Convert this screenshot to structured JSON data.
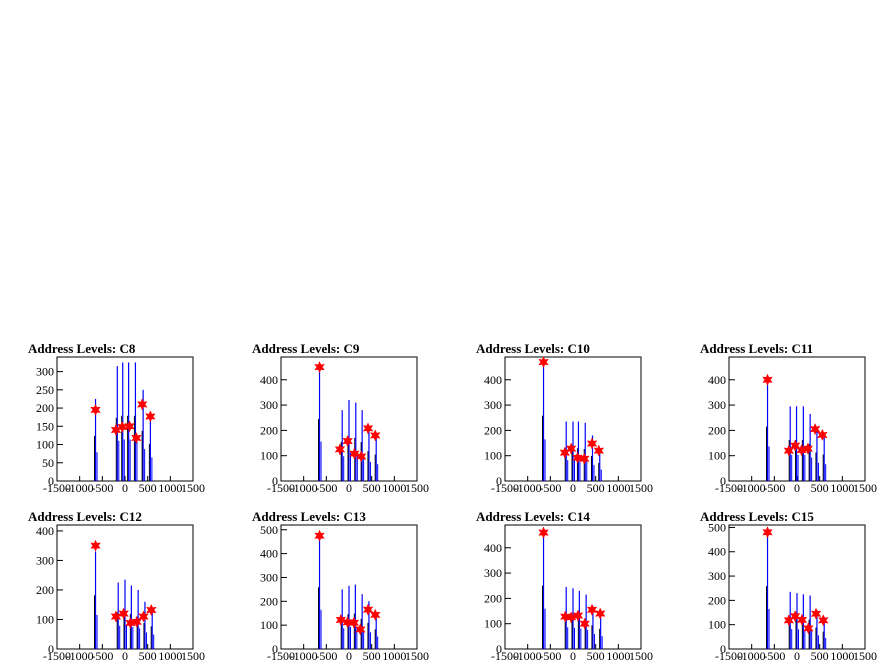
{
  "chart_data": [
    {
      "type": "bar",
      "title": "Address Levels: C8",
      "xlim": [
        -1500,
        1500
      ],
      "ylim": [
        0,
        340
      ],
      "yticks": [
        0,
        50,
        100,
        150,
        200,
        250,
        300
      ],
      "xticks": [
        "-1500",
        "-1000",
        "-500",
        "0",
        "500",
        "1000",
        "1500"
      ],
      "spikes": [
        {
          "x": -650,
          "y": 225
        },
        {
          "x": -170,
          "y": 315
        },
        {
          "x": -50,
          "y": 325
        },
        {
          "x": 80,
          "y": 325
        },
        {
          "x": 230,
          "y": 325
        },
        {
          "x": 400,
          "y": 250
        },
        {
          "x": 560,
          "y": 185
        }
      ],
      "peaks": [
        {
          "x": -650,
          "y": 195
        },
        {
          "x": -200,
          "y": 140
        },
        {
          "x": -60,
          "y": 148
        },
        {
          "x": 100,
          "y": 150
        },
        {
          "x": 250,
          "y": 118
        },
        {
          "x": 380,
          "y": 210
        },
        {
          "x": 560,
          "y": 177
        }
      ]
    },
    {
      "type": "bar",
      "title": "Address Levels: C9",
      "xlim": [
        -1500,
        1500
      ],
      "ylim": [
        0,
        490
      ],
      "yticks": [
        0,
        100,
        200,
        300,
        400
      ],
      "xticks": [
        "-1500",
        "-1000",
        "-500",
        "0",
        "500",
        "1000",
        "1500"
      ],
      "spikes": [
        {
          "x": -650,
          "y": 445
        },
        {
          "x": -150,
          "y": 280
        },
        {
          "x": 0,
          "y": 320
        },
        {
          "x": 150,
          "y": 310
        },
        {
          "x": 290,
          "y": 280
        },
        {
          "x": 440,
          "y": 215
        },
        {
          "x": 600,
          "y": 190
        }
      ],
      "peaks": [
        {
          "x": -650,
          "y": 450
        },
        {
          "x": -200,
          "y": 125
        },
        {
          "x": -30,
          "y": 158
        },
        {
          "x": 120,
          "y": 108
        },
        {
          "x": 270,
          "y": 97
        },
        {
          "x": 420,
          "y": 208
        },
        {
          "x": 580,
          "y": 180
        }
      ]
    },
    {
      "type": "bar",
      "title": "Address Levels: C10",
      "xlim": [
        -1500,
        1500
      ],
      "ylim": [
        0,
        490
      ],
      "yticks": [
        0,
        100,
        200,
        300,
        400
      ],
      "xticks": [
        "-1500",
        "-1000",
        "-500",
        "0",
        "500",
        "1000",
        "1500"
      ],
      "spikes": [
        {
          "x": -650,
          "y": 470
        },
        {
          "x": -150,
          "y": 235
        },
        {
          "x": 0,
          "y": 235
        },
        {
          "x": 120,
          "y": 235
        },
        {
          "x": 270,
          "y": 230
        },
        {
          "x": 430,
          "y": 180
        },
        {
          "x": 590,
          "y": 130
        }
      ],
      "peaks": [
        {
          "x": -650,
          "y": 470
        },
        {
          "x": -180,
          "y": 112
        },
        {
          "x": -40,
          "y": 128
        },
        {
          "x": 100,
          "y": 92
        },
        {
          "x": 250,
          "y": 88
        },
        {
          "x": 420,
          "y": 148
        },
        {
          "x": 570,
          "y": 120
        }
      ]
    },
    {
      "type": "bar",
      "title": "Address Levels: C11",
      "xlim": [
        -1500,
        1500
      ],
      "ylim": [
        0,
        490
      ],
      "yticks": [
        0,
        100,
        200,
        300,
        400
      ],
      "xticks": [
        "-1500",
        "-1000",
        "-500",
        "0",
        "500",
        "1000",
        "1500"
      ],
      "spikes": [
        {
          "x": -650,
          "y": 390
        },
        {
          "x": -150,
          "y": 295
        },
        {
          "x": -10,
          "y": 295
        },
        {
          "x": 140,
          "y": 295
        },
        {
          "x": 290,
          "y": 265
        },
        {
          "x": 440,
          "y": 205
        },
        {
          "x": 600,
          "y": 190
        }
      ],
      "peaks": [
        {
          "x": -650,
          "y": 400
        },
        {
          "x": -180,
          "y": 120
        },
        {
          "x": -40,
          "y": 140
        },
        {
          "x": 100,
          "y": 122
        },
        {
          "x": 240,
          "y": 128
        },
        {
          "x": 400,
          "y": 205
        },
        {
          "x": 560,
          "y": 182
        }
      ]
    },
    {
      "type": "bar",
      "title": "Address Levels: C12",
      "xlim": [
        -1500,
        1500
      ],
      "ylim": [
        0,
        420
      ],
      "yticks": [
        0,
        100,
        200,
        300,
        400
      ],
      "xticks": [
        "-1500",
        "-1000",
        "-500",
        "0",
        "500",
        "1000",
        "1500"
      ],
      "spikes": [
        {
          "x": -650,
          "y": 330
        },
        {
          "x": -150,
          "y": 225
        },
        {
          "x": 0,
          "y": 235
        },
        {
          "x": 140,
          "y": 215
        },
        {
          "x": 290,
          "y": 200
        },
        {
          "x": 440,
          "y": 160
        },
        {
          "x": 600,
          "y": 140
        }
      ],
      "peaks": [
        {
          "x": -650,
          "y": 350
        },
        {
          "x": -200,
          "y": 110
        },
        {
          "x": -30,
          "y": 120
        },
        {
          "x": 120,
          "y": 88
        },
        {
          "x": 260,
          "y": 92
        },
        {
          "x": 410,
          "y": 110
        },
        {
          "x": 580,
          "y": 132
        }
      ]
    },
    {
      "type": "bar",
      "title": "Address Levels: C13",
      "xlim": [
        -1500,
        1500
      ],
      "ylim": [
        0,
        520
      ],
      "yticks": [
        0,
        100,
        200,
        300,
        400,
        500
      ],
      "xticks": [
        "-1500",
        "-1000",
        "-500",
        "0",
        "500",
        "1000",
        "1500"
      ],
      "spikes": [
        {
          "x": -650,
          "y": 470
        },
        {
          "x": -150,
          "y": 250
        },
        {
          "x": 0,
          "y": 265
        },
        {
          "x": 140,
          "y": 270
        },
        {
          "x": 290,
          "y": 230
        },
        {
          "x": 440,
          "y": 200
        },
        {
          "x": 600,
          "y": 150
        }
      ],
      "peaks": [
        {
          "x": -650,
          "y": 475
        },
        {
          "x": -180,
          "y": 122
        },
        {
          "x": -30,
          "y": 112
        },
        {
          "x": 110,
          "y": 110
        },
        {
          "x": 250,
          "y": 82
        },
        {
          "x": 420,
          "y": 165
        },
        {
          "x": 580,
          "y": 143
        }
      ]
    },
    {
      "type": "bar",
      "title": "Address Levels: C14",
      "xlim": [
        -1500,
        1500
      ],
      "ylim": [
        0,
        490
      ],
      "yticks": [
        0,
        100,
        200,
        300,
        400
      ],
      "xticks": [
        "-1500",
        "-1000",
        "-500",
        "0",
        "500",
        "1000",
        "1500"
      ],
      "spikes": [
        {
          "x": -650,
          "y": 455
        },
        {
          "x": -150,
          "y": 245
        },
        {
          "x": 0,
          "y": 240
        },
        {
          "x": 140,
          "y": 230
        },
        {
          "x": 290,
          "y": 215
        },
        {
          "x": 440,
          "y": 170
        },
        {
          "x": 610,
          "y": 145
        }
      ],
      "peaks": [
        {
          "x": -650,
          "y": 460
        },
        {
          "x": -170,
          "y": 128
        },
        {
          "x": -40,
          "y": 125
        },
        {
          "x": 110,
          "y": 132
        },
        {
          "x": 260,
          "y": 100
        },
        {
          "x": 420,
          "y": 155
        },
        {
          "x": 600,
          "y": 140
        }
      ]
    },
    {
      "type": "bar",
      "title": "Address Levels: C15",
      "xlim": [
        -1500,
        1500
      ],
      "ylim": [
        0,
        510
      ],
      "yticks": [
        0,
        100,
        200,
        300,
        400,
        500
      ],
      "xticks": [
        "-1500",
        "-1000",
        "-500",
        "0",
        "500",
        "1000",
        "1500"
      ],
      "spikes": [
        {
          "x": -650,
          "y": 470
        },
        {
          "x": -150,
          "y": 235
        },
        {
          "x": 0,
          "y": 230
        },
        {
          "x": 140,
          "y": 225
        },
        {
          "x": 290,
          "y": 220
        },
        {
          "x": 440,
          "y": 160
        },
        {
          "x": 600,
          "y": 130
        }
      ],
      "peaks": [
        {
          "x": -650,
          "y": 480
        },
        {
          "x": -180,
          "y": 118
        },
        {
          "x": -40,
          "y": 135
        },
        {
          "x": 110,
          "y": 120
        },
        {
          "x": 250,
          "y": 85
        },
        {
          "x": 420,
          "y": 145
        },
        {
          "x": 580,
          "y": 118
        }
      ]
    }
  ],
  "colors": {
    "spike": "#0000ff",
    "spike_shadow": "#000000",
    "marker": "#ff0000",
    "axis": "#000000"
  }
}
